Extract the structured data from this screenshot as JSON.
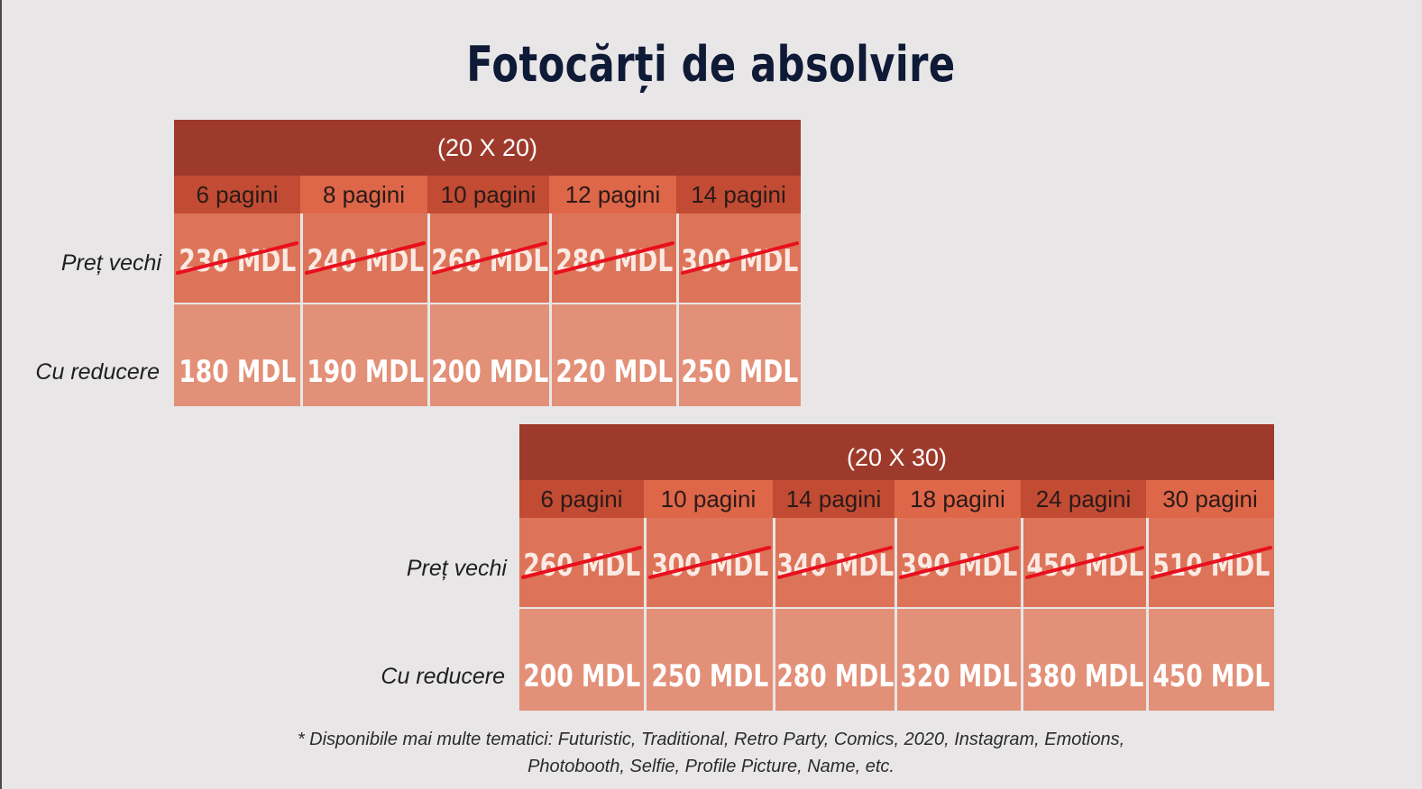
{
  "title": "Fotocărți de absolvire",
  "row_labels": {
    "old": "Preț vechi",
    "new": "Cu reducere"
  },
  "tables": [
    {
      "format": "(20 X 20)",
      "columns": [
        {
          "pages": "6 pagini",
          "old": "230 MDL",
          "new": "180 MDL"
        },
        {
          "pages": "8 pagini",
          "old": "240 MDL",
          "new": "190 MDL"
        },
        {
          "pages": "10 pagini",
          "old": "260 MDL",
          "new": "200 MDL"
        },
        {
          "pages": "12 pagini",
          "old": "280 MDL",
          "new": "220 MDL"
        },
        {
          "pages": "14 pagini",
          "old": "300 MDL",
          "new": "250 MDL"
        }
      ]
    },
    {
      "format": "(20 X 30)",
      "columns": [
        {
          "pages": "6 pagini",
          "old": "260 MDL",
          "new": "200 MDL"
        },
        {
          "pages": "10 pagini",
          "old": "300 MDL",
          "new": "250 MDL"
        },
        {
          "pages": "14 pagini",
          "old": "340 MDL",
          "new": "280 MDL"
        },
        {
          "pages": "18 pagini",
          "old": "390 MDL",
          "new": "320 MDL"
        },
        {
          "pages": "24 pagini",
          "old": "450 MDL",
          "new": "380 MDL"
        },
        {
          "pages": "30 pagini",
          "old": "510 MDL",
          "new": "450 MDL"
        }
      ]
    }
  ],
  "footnote": {
    "line1": "* Disponibile mai multe tematici: Futuristic, Traditional, Retro Party, Comics, 2020, Instagram, Emotions,",
    "line2": "Photobooth, Selfie, Profile Picture, Name, etc."
  },
  "colors": {
    "header": "#9e3a2c",
    "strike": "#e8101e",
    "title": "#0f1a36"
  }
}
